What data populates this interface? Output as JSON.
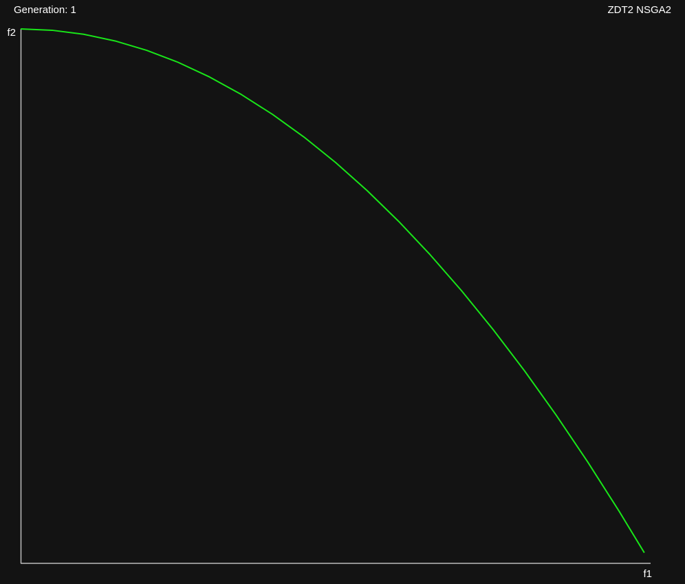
{
  "header": {
    "generation_text": "Generation: 1",
    "problem_title": "ZDT2 NSGA2"
  },
  "colors": {
    "background": "#131313",
    "axis": "#bdbdbd",
    "front": "#19e619",
    "text": "#ffffff"
  },
  "chart_data": {
    "type": "line",
    "xlabel": "f1",
    "ylabel": "f2",
    "xlim": [
      0,
      1
    ],
    "ylim": [
      0,
      1
    ],
    "grid": false,
    "series": [
      {
        "x": [
          0.0,
          0.05,
          0.1,
          0.15,
          0.2,
          0.25,
          0.3,
          0.35,
          0.4,
          0.45,
          0.5,
          0.55,
          0.6,
          0.65,
          0.7,
          0.75,
          0.8,
          0.85,
          0.9,
          0.95,
          0.99
        ],
        "y": [
          1.0,
          0.9975,
          0.99,
          0.9775,
          0.96,
          0.9375,
          0.91,
          0.8775,
          0.84,
          0.7975,
          0.75,
          0.6975,
          0.64,
          0.5775,
          0.51,
          0.4375,
          0.36,
          0.2775,
          0.19,
          0.0975,
          0.0199
        ]
      }
    ]
  }
}
